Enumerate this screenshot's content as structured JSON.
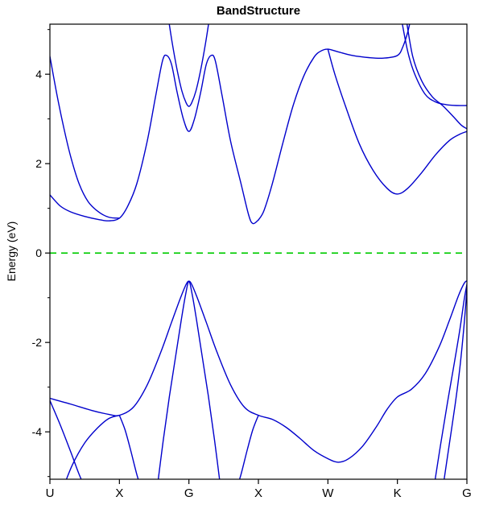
{
  "chart_data": {
    "type": "line",
    "title": "BandStructure",
    "ylabel": "Energy (eV)",
    "xlabel": "",
    "xlim": [
      0,
      6
    ],
    "ylim": [
      -5.06,
      5.12
    ],
    "x_ticks": [
      {
        "pos": 0,
        "label": "U"
      },
      {
        "pos": 1,
        "label": "X"
      },
      {
        "pos": 2,
        "label": "G"
      },
      {
        "pos": 3,
        "label": "X"
      },
      {
        "pos": 4,
        "label": "W"
      },
      {
        "pos": 5,
        "label": "K"
      },
      {
        "pos": 6,
        "label": "G"
      }
    ],
    "y_ticks": [
      -4,
      -2,
      0,
      2,
      4
    ],
    "y_minor_ticks": [
      -5,
      -3,
      -1,
      1,
      3,
      5
    ],
    "grid": false,
    "band_color": "#0000CC",
    "frame_color": "#000000",
    "fermi_level": {
      "value": 0,
      "color": "#00CC00",
      "style": "dashed"
    },
    "bands": [
      {
        "name": "conduction-u-x",
        "points": [
          [
            0,
            4.4
          ],
          [
            0.1,
            3.55
          ],
          [
            0.2,
            2.8
          ],
          [
            0.3,
            2.15
          ],
          [
            0.42,
            1.55
          ],
          [
            0.55,
            1.15
          ],
          [
            0.7,
            0.92
          ],
          [
            0.85,
            0.8
          ],
          [
            1.0,
            0.78
          ]
        ]
      },
      {
        "name": "conduction-low",
        "points": [
          [
            0,
            1.3
          ],
          [
            0.15,
            1.05
          ],
          [
            0.3,
            0.92
          ],
          [
            0.5,
            0.82
          ],
          [
            0.7,
            0.75
          ],
          [
            0.85,
            0.72
          ],
          [
            1.0,
            0.78
          ],
          [
            1.12,
            1.05
          ],
          [
            1.25,
            1.55
          ],
          [
            1.4,
            2.5
          ],
          [
            1.52,
            3.5
          ],
          [
            1.62,
            4.3
          ],
          [
            1.68,
            4.42
          ],
          [
            1.75,
            4.22
          ],
          [
            1.83,
            3.6
          ],
          [
            1.92,
            3.0
          ],
          [
            2.0,
            2.72
          ],
          [
            2.08,
            3.0
          ],
          [
            2.17,
            3.6
          ],
          [
            2.25,
            4.22
          ],
          [
            2.32,
            4.42
          ],
          [
            2.38,
            4.3
          ],
          [
            2.48,
            3.5
          ],
          [
            2.6,
            2.5
          ],
          [
            2.75,
            1.55
          ],
          [
            2.86,
            0.85
          ],
          [
            2.92,
            0.66
          ],
          [
            3.0,
            0.74
          ]
        ]
      },
      {
        "name": "conduction-gamma-upper",
        "points": [
          [
            1.7,
            5.3
          ],
          [
            1.76,
            4.7
          ],
          [
            1.83,
            4.1
          ],
          [
            1.9,
            3.62
          ],
          [
            1.96,
            3.36
          ],
          [
            2.0,
            3.28
          ],
          [
            2.04,
            3.36
          ],
          [
            2.1,
            3.62
          ],
          [
            2.17,
            4.1
          ],
          [
            2.24,
            4.7
          ],
          [
            2.3,
            5.3
          ]
        ]
      },
      {
        "name": "conduction-x-w-k",
        "points": [
          [
            3.0,
            0.74
          ],
          [
            3.08,
            0.95
          ],
          [
            3.2,
            1.55
          ],
          [
            3.35,
            2.45
          ],
          [
            3.5,
            3.3
          ],
          [
            3.65,
            3.95
          ],
          [
            3.8,
            4.38
          ],
          [
            3.9,
            4.52
          ],
          [
            4.0,
            4.56
          ],
          [
            4.15,
            4.5
          ],
          [
            4.35,
            4.42
          ],
          [
            4.6,
            4.37
          ],
          [
            4.8,
            4.36
          ],
          [
            5.0,
            4.42
          ],
          [
            5.08,
            4.62
          ],
          [
            5.15,
            4.95
          ],
          [
            5.2,
            5.3
          ]
        ]
      },
      {
        "name": "conduction-w-k-g",
        "points": [
          [
            4.0,
            4.56
          ],
          [
            4.1,
            4.0
          ],
          [
            4.25,
            3.3
          ],
          [
            4.45,
            2.45
          ],
          [
            4.65,
            1.85
          ],
          [
            4.85,
            1.45
          ],
          [
            5.0,
            1.32
          ],
          [
            5.15,
            1.45
          ],
          [
            5.35,
            1.8
          ],
          [
            5.55,
            2.2
          ],
          [
            5.75,
            2.52
          ],
          [
            5.9,
            2.66
          ],
          [
            6.0,
            2.72
          ]
        ]
      },
      {
        "name": "conduction-k-g-a",
        "points": [
          [
            5.05,
            5.3
          ],
          [
            5.15,
            4.5
          ],
          [
            5.25,
            4.0
          ],
          [
            5.4,
            3.55
          ],
          [
            5.55,
            3.38
          ],
          [
            5.7,
            3.32
          ],
          [
            5.85,
            3.3
          ],
          [
            6.0,
            3.3
          ]
        ]
      },
      {
        "name": "conduction-k-g-b",
        "points": [
          [
            5.12,
            5.3
          ],
          [
            5.22,
            4.4
          ],
          [
            5.35,
            3.85
          ],
          [
            5.5,
            3.5
          ],
          [
            5.65,
            3.3
          ],
          [
            5.8,
            3.06
          ],
          [
            5.92,
            2.86
          ],
          [
            6.0,
            2.78
          ]
        ]
      },
      {
        "name": "valence-main",
        "points": [
          [
            0,
            -3.25
          ],
          [
            0.3,
            -3.38
          ],
          [
            0.6,
            -3.52
          ],
          [
            0.85,
            -3.61
          ],
          [
            1.0,
            -3.63
          ],
          [
            1.2,
            -3.45
          ],
          [
            1.4,
            -2.95
          ],
          [
            1.6,
            -2.2
          ],
          [
            1.75,
            -1.55
          ],
          [
            1.88,
            -1.0
          ],
          [
            1.96,
            -0.7
          ],
          [
            2.0,
            -0.63
          ],
          [
            2.04,
            -0.7
          ],
          [
            2.12,
            -1.0
          ],
          [
            2.25,
            -1.55
          ],
          [
            2.4,
            -2.2
          ],
          [
            2.6,
            -2.95
          ],
          [
            2.8,
            -3.45
          ],
          [
            3.0,
            -3.63
          ],
          [
            3.2,
            -3.72
          ],
          [
            3.4,
            -3.9
          ],
          [
            3.6,
            -4.15
          ],
          [
            3.8,
            -4.42
          ],
          [
            4.0,
            -4.6
          ],
          [
            4.15,
            -4.68
          ],
          [
            4.3,
            -4.6
          ],
          [
            4.5,
            -4.32
          ],
          [
            4.7,
            -3.88
          ],
          [
            4.85,
            -3.5
          ],
          [
            5.0,
            -3.22
          ],
          [
            5.2,
            -3.05
          ],
          [
            5.4,
            -2.7
          ],
          [
            5.6,
            -2.1
          ],
          [
            5.75,
            -1.5
          ],
          [
            5.88,
            -0.95
          ],
          [
            5.96,
            -0.68
          ],
          [
            6.0,
            -0.62
          ]
        ]
      },
      {
        "name": "valence-gamma-steep",
        "points": [
          [
            1.54,
            -5.3
          ],
          [
            1.63,
            -4.2
          ],
          [
            1.72,
            -3.2
          ],
          [
            1.81,
            -2.3
          ],
          [
            1.89,
            -1.5
          ],
          [
            1.95,
            -0.95
          ],
          [
            2.0,
            -0.64
          ],
          [
            2.05,
            -0.95
          ],
          [
            2.11,
            -1.5
          ],
          [
            2.19,
            -2.3
          ],
          [
            2.28,
            -3.2
          ],
          [
            2.37,
            -4.2
          ],
          [
            2.46,
            -5.3
          ]
        ]
      },
      {
        "name": "valence-u-down",
        "points": [
          [
            0,
            -3.3
          ],
          [
            0.15,
            -3.85
          ],
          [
            0.3,
            -4.45
          ],
          [
            0.42,
            -4.95
          ],
          [
            0.52,
            -5.3
          ]
        ]
      },
      {
        "name": "valence-up-to-x1",
        "points": [
          [
            0.18,
            -5.3
          ],
          [
            0.32,
            -4.75
          ],
          [
            0.5,
            -4.25
          ],
          [
            0.68,
            -3.92
          ],
          [
            0.85,
            -3.7
          ],
          [
            1.0,
            -3.63
          ]
        ]
      },
      {
        "name": "valence-x1-down",
        "points": [
          [
            1.0,
            -3.63
          ],
          [
            1.08,
            -3.95
          ],
          [
            1.16,
            -4.4
          ],
          [
            1.25,
            -4.95
          ],
          [
            1.32,
            -5.3
          ]
        ]
      },
      {
        "name": "valence-up-to-x2",
        "points": [
          [
            2.68,
            -5.3
          ],
          [
            2.75,
            -4.95
          ],
          [
            2.84,
            -4.4
          ],
          [
            2.92,
            -3.95
          ],
          [
            3.0,
            -3.63
          ]
        ]
      },
      {
        "name": "valence-k-g-steep-a",
        "points": [
          [
            5.52,
            -5.3
          ],
          [
            5.62,
            -4.3
          ],
          [
            5.72,
            -3.35
          ],
          [
            5.82,
            -2.45
          ],
          [
            5.9,
            -1.7
          ],
          [
            5.96,
            -1.05
          ],
          [
            6.0,
            -0.7
          ]
        ]
      },
      {
        "name": "valence-k-g-steep-b",
        "points": [
          [
            5.65,
            -5.3
          ],
          [
            5.74,
            -4.35
          ],
          [
            5.83,
            -3.4
          ],
          [
            5.9,
            -2.55
          ],
          [
            5.96,
            -1.6
          ],
          [
            6.0,
            -0.8
          ]
        ]
      }
    ]
  }
}
